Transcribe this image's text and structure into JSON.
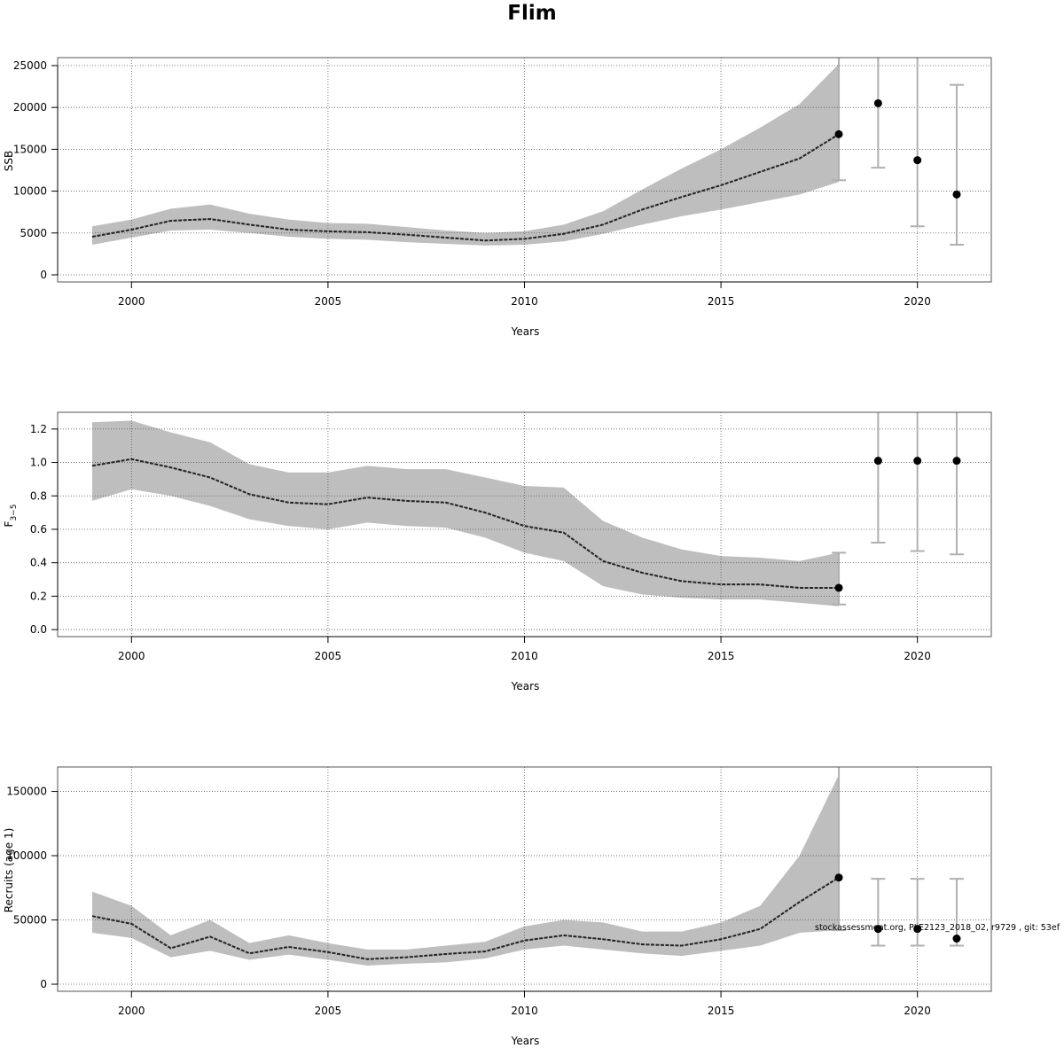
{
  "title": "Flim",
  "watermark": "stockassessment.org, PLE2123_2018_02, r9729 , git: 53ef",
  "colors": {
    "band": "#bebebe",
    "line": "#000000",
    "errorbar": "#b0b0b0",
    "grid": "#555555"
  },
  "chart_data": [
    {
      "type": "line",
      "title": "",
      "xlabel": "Years",
      "ylabel": "SSB",
      "xlim": [
        1998.12,
        2021.88
      ],
      "ylim": [
        -850,
        25950
      ],
      "xticks": [
        2000,
        2005,
        2010,
        2015,
        2020
      ],
      "yticks": [
        0,
        5000,
        10000,
        15000,
        20000,
        25000
      ],
      "grid": true,
      "x": [
        1999,
        2000,
        2001,
        2002,
        2003,
        2004,
        2005,
        2006,
        2007,
        2008,
        2009,
        2010,
        2011,
        2012,
        2013,
        2014,
        2015,
        2016,
        2017,
        2018
      ],
      "estimate": [
        4550,
        5400,
        6460,
        6670,
        6000,
        5400,
        5200,
        5100,
        4800,
        4450,
        4100,
        4300,
        4900,
        6000,
        7800,
        9300,
        10700,
        12300,
        13900,
        16800
      ],
      "lower": [
        3600,
        4450,
        5300,
        5400,
        5000,
        4550,
        4300,
        4200,
        3900,
        3700,
        3500,
        3600,
        4000,
        4900,
        6000,
        7000,
        7800,
        8700,
        9600,
        11100
      ],
      "upper": [
        5800,
        6600,
        7900,
        8400,
        7300,
        6600,
        6200,
        6100,
        5700,
        5300,
        5000,
        5200,
        6000,
        7600,
        10200,
        12700,
        15000,
        17600,
        20400,
        25200
      ],
      "forecast": [
        {
          "x": 2018,
          "value": 16800,
          "low": 11300,
          "high": 30000
        },
        {
          "x": 2019,
          "value": 20500,
          "low": 12800,
          "high": 30000
        },
        {
          "x": 2020,
          "value": 13700,
          "low": 5800,
          "high": 30000
        },
        {
          "x": 2021,
          "value": 9600,
          "low": 3600,
          "high": 22700
        }
      ]
    },
    {
      "type": "line",
      "title": "",
      "xlabel": "Years",
      "ylabel": "F",
      "ylabel_sub": "3−5",
      "xlim": [
        1998.12,
        2021.88
      ],
      "ylim": [
        -0.042,
        1.3
      ],
      "xticks": [
        2000,
        2005,
        2010,
        2015,
        2020
      ],
      "yticks": [
        0.0,
        0.2,
        0.4,
        0.6,
        0.8,
        1.0,
        1.2
      ],
      "ytick_labels": [
        "0.0",
        "0.2",
        "0.4",
        "0.6",
        "0.8",
        "1.0",
        "1.2"
      ],
      "grid": true,
      "x": [
        1999,
        2000,
        2001,
        2002,
        2003,
        2004,
        2005,
        2006,
        2007,
        2008,
        2009,
        2010,
        2011,
        2012,
        2013,
        2014,
        2015,
        2016,
        2017,
        2018
      ],
      "estimate": [
        0.98,
        1.02,
        0.97,
        0.91,
        0.81,
        0.76,
        0.75,
        0.79,
        0.77,
        0.76,
        0.7,
        0.62,
        0.58,
        0.41,
        0.34,
        0.29,
        0.27,
        0.27,
        0.25,
        0.25
      ],
      "lower": [
        0.77,
        0.84,
        0.8,
        0.74,
        0.66,
        0.62,
        0.6,
        0.64,
        0.62,
        0.61,
        0.55,
        0.46,
        0.41,
        0.26,
        0.21,
        0.19,
        0.18,
        0.18,
        0.16,
        0.14
      ],
      "upper": [
        1.24,
        1.25,
        1.18,
        1.12,
        0.99,
        0.94,
        0.94,
        0.98,
        0.96,
        0.96,
        0.91,
        0.86,
        0.85,
        0.65,
        0.55,
        0.48,
        0.44,
        0.43,
        0.41,
        0.46
      ],
      "forecast": [
        {
          "x": 2018,
          "value": 0.25,
          "low": 0.15,
          "high": 0.46
        },
        {
          "x": 2019,
          "value": 1.01,
          "low": 0.52,
          "high": 1.6
        },
        {
          "x": 2020,
          "value": 1.01,
          "low": 0.47,
          "high": 1.6
        },
        {
          "x": 2021,
          "value": 1.01,
          "low": 0.45,
          "high": 1.6
        }
      ]
    },
    {
      "type": "line",
      "title": "",
      "xlabel": "Years",
      "ylabel": "Recruits (age 1)",
      "xlim": [
        1998.12,
        2021.88
      ],
      "ylim": [
        -5500,
        169000
      ],
      "xticks": [
        2000,
        2005,
        2010,
        2015,
        2020
      ],
      "yticks": [
        0,
        50000,
        100000,
        150000
      ],
      "grid": true,
      "x": [
        1999,
        2000,
        2001,
        2002,
        2003,
        2004,
        2005,
        2006,
        2007,
        2008,
        2009,
        2010,
        2011,
        2012,
        2013,
        2014,
        2015,
        2016,
        2017,
        2018
      ],
      "estimate": [
        53000,
        47000,
        28000,
        37000,
        24000,
        29000,
        25000,
        19500,
        21000,
        23500,
        25500,
        34000,
        38000,
        35000,
        31000,
        30000,
        35000,
        43000,
        64000,
        83000
      ],
      "lower": [
        40000,
        36000,
        21000,
        26000,
        19000,
        23000,
        19000,
        14500,
        16000,
        17000,
        20000,
        27000,
        30000,
        27000,
        24000,
        22000,
        26000,
        30000,
        40000,
        42000
      ],
      "upper": [
        72000,
        61000,
        38000,
        50000,
        32000,
        38000,
        32000,
        27000,
        27000,
        30000,
        33000,
        45000,
        50000,
        48000,
        41000,
        41000,
        48000,
        61000,
        100000,
        163000
      ],
      "forecast": [
        {
          "x": 2018,
          "value": 83000,
          "low": 42000,
          "high": 200000
        },
        {
          "x": 2019,
          "value": 43000,
          "low": 30000,
          "high": 82000
        },
        {
          "x": 2020,
          "value": 43000,
          "low": 30000,
          "high": 82000
        },
        {
          "x": 2021,
          "value": 35500,
          "low": 30000,
          "high": 82000
        }
      ]
    }
  ]
}
